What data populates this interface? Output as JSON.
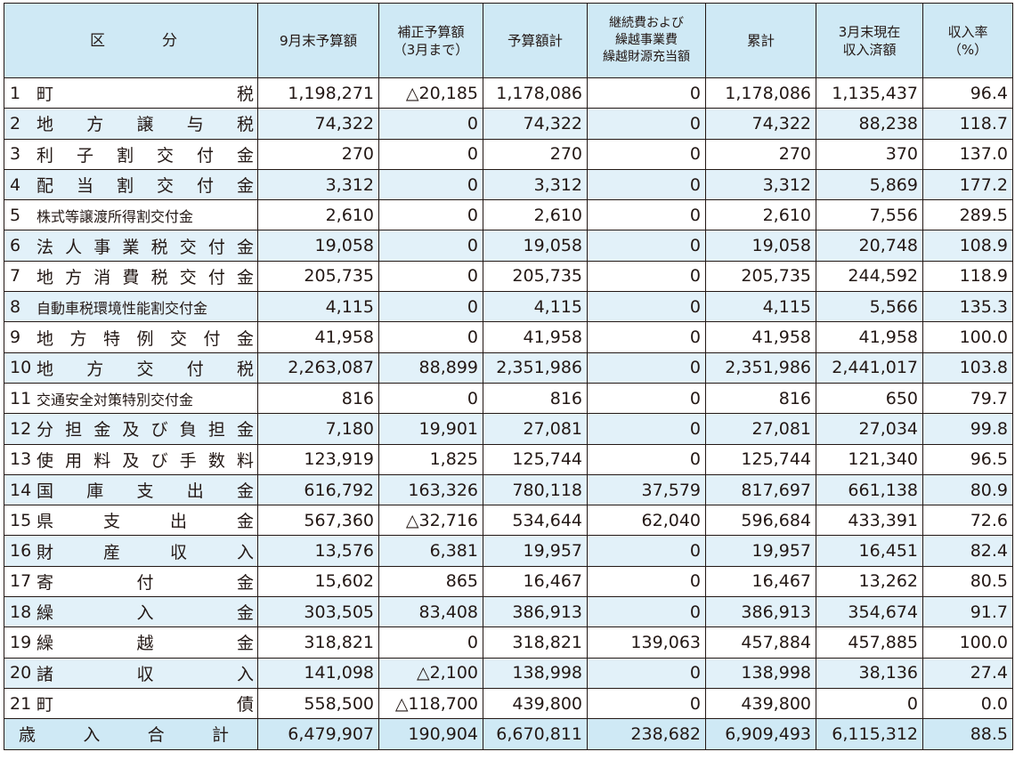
{
  "headers": {
    "kubun": "区　　分",
    "sep_budget": "9月末予算額",
    "hosei_1": "補正予算額",
    "hosei_2": "（3月まで）",
    "budget_total": "予算額計",
    "keizoku_1": "継続費および",
    "keizoku_2": "繰越事業費",
    "keizoku_3": "繰越財源充当額",
    "ruikei": "累計",
    "received_1": "3月末現在",
    "received_2": "収入済額",
    "rate_1": "収入率",
    "rate_2": "（%）"
  },
  "rows": [
    {
      "no": "1",
      "label": "町　　税",
      "sep": "1,198,271",
      "hosei": "△20,185",
      "total": "1,178,086",
      "kurikoshi": "0",
      "ruikei": "1,178,086",
      "received": "1,135,437",
      "rate": "96.4"
    },
    {
      "no": "2",
      "label": "地方譲与税",
      "sep": "74,322",
      "hosei": "0",
      "total": "74,322",
      "kurikoshi": "0",
      "ruikei": "74,322",
      "received": "88,238",
      "rate": "118.7"
    },
    {
      "no": "3",
      "label": "利子割交付金",
      "sep": "270",
      "hosei": "0",
      "total": "270",
      "kurikoshi": "0",
      "ruikei": "270",
      "received": "370",
      "rate": "137.0"
    },
    {
      "no": "4",
      "label": "配当割交付金",
      "sep": "3,312",
      "hosei": "0",
      "total": "3,312",
      "kurikoshi": "0",
      "ruikei": "3,312",
      "received": "5,869",
      "rate": "177.2"
    },
    {
      "no": "5",
      "label": "株式等譲渡所得割交付金",
      "sep": "2,610",
      "hosei": "0",
      "total": "2,610",
      "kurikoshi": "0",
      "ruikei": "2,610",
      "received": "7,556",
      "rate": "289.5"
    },
    {
      "no": "6",
      "label": "法人事業税交付金",
      "sep": "19,058",
      "hosei": "0",
      "total": "19,058",
      "kurikoshi": "0",
      "ruikei": "19,058",
      "received": "20,748",
      "rate": "108.9"
    },
    {
      "no": "7",
      "label": "地方消費税交付金",
      "sep": "205,735",
      "hosei": "0",
      "total": "205,735",
      "kurikoshi": "0",
      "ruikei": "205,735",
      "received": "244,592",
      "rate": "118.9"
    },
    {
      "no": "8",
      "label": "自動車税環境性能割交付金",
      "sep": "4,115",
      "hosei": "0",
      "total": "4,115",
      "kurikoshi": "0",
      "ruikei": "4,115",
      "received": "5,566",
      "rate": "135.3"
    },
    {
      "no": "9",
      "label": "地方特例交付金",
      "sep": "41,958",
      "hosei": "0",
      "total": "41,958",
      "kurikoshi": "0",
      "ruikei": "41,958",
      "received": "41,958",
      "rate": "100.0"
    },
    {
      "no": "10",
      "label": "地方交付税",
      "sep": "2,263,087",
      "hosei": "88,899",
      "total": "2,351,986",
      "kurikoshi": "0",
      "ruikei": "2,351,986",
      "received": "2,441,017",
      "rate": "103.8"
    },
    {
      "no": "11",
      "label": "交通安全対策特別交付金",
      "sep": "816",
      "hosei": "0",
      "total": "816",
      "kurikoshi": "0",
      "ruikei": "816",
      "received": "650",
      "rate": "79.7"
    },
    {
      "no": "12",
      "label": "分担金及び負担金",
      "sep": "7,180",
      "hosei": "19,901",
      "total": "27,081",
      "kurikoshi": "0",
      "ruikei": "27,081",
      "received": "27,034",
      "rate": "99.8"
    },
    {
      "no": "13",
      "label": "使用料及び手数料",
      "sep": "123,919",
      "hosei": "1,825",
      "total": "125,744",
      "kurikoshi": "0",
      "ruikei": "125,744",
      "received": "121,340",
      "rate": "96.5"
    },
    {
      "no": "14",
      "label": "国庫支出金",
      "sep": "616,792",
      "hosei": "163,326",
      "total": "780,118",
      "kurikoshi": "37,579",
      "ruikei": "817,697",
      "received": "661,138",
      "rate": "80.9"
    },
    {
      "no": "15",
      "label": "県支出金",
      "sep": "567,360",
      "hosei": "△32,716",
      "total": "534,644",
      "kurikoshi": "62,040",
      "ruikei": "596,684",
      "received": "433,391",
      "rate": "72.6"
    },
    {
      "no": "16",
      "label": "財産収入",
      "sep": "13,576",
      "hosei": "6,381",
      "total": "19,957",
      "kurikoshi": "0",
      "ruikei": "19,957",
      "received": "16,451",
      "rate": "82.4"
    },
    {
      "no": "17",
      "label": "寄付金",
      "sep": "15,602",
      "hosei": "865",
      "total": "16,467",
      "kurikoshi": "0",
      "ruikei": "16,467",
      "received": "13,262",
      "rate": "80.5"
    },
    {
      "no": "18",
      "label": "繰入金",
      "sep": "303,505",
      "hosei": "83,408",
      "total": "386,913",
      "kurikoshi": "0",
      "ruikei": "386,913",
      "received": "354,674",
      "rate": "91.7"
    },
    {
      "no": "19",
      "label": "繰越金",
      "sep": "318,821",
      "hosei": "0",
      "total": "318,821",
      "kurikoshi": "139,063",
      "ruikei": "457,884",
      "received": "457,885",
      "rate": "100.0"
    },
    {
      "no": "20",
      "label": "諸収入",
      "sep": "141,098",
      "hosei": "△2,100",
      "total": "138,998",
      "kurikoshi": "0",
      "ruikei": "138,998",
      "received": "38,136",
      "rate": "27.4"
    },
    {
      "no": "21",
      "label": "町　　債",
      "sep": "558,500",
      "hosei": "△118,700",
      "total": "439,800",
      "kurikoshi": "0",
      "ruikei": "439,800",
      "received": "0",
      "rate": "0.0"
    }
  ],
  "total": {
    "label": "歳入合計",
    "sep": "6,479,907",
    "hosei": "190,904",
    "total": "6,670,811",
    "kurikoshi": "238,682",
    "ruikei": "6,909,493",
    "received": "6,115,312",
    "rate": "88.5"
  },
  "colors": {
    "header_bg": "#cfe9f5",
    "alt_row_bg": "#e2f1f9",
    "border": "#231815"
  }
}
